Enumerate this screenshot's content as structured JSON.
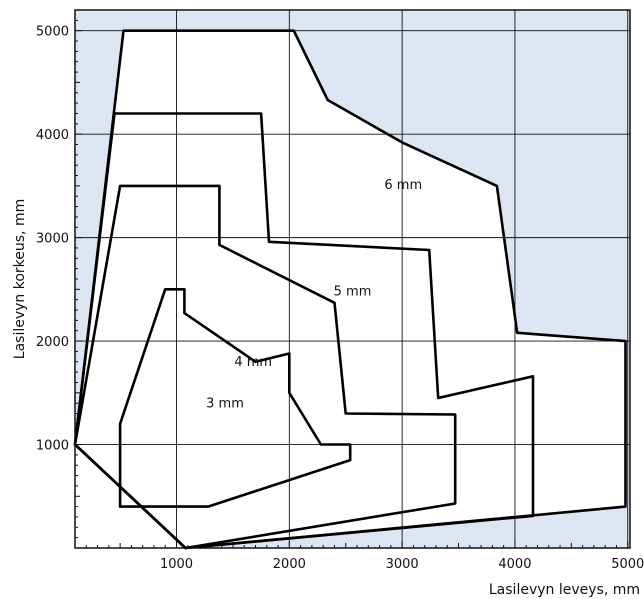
{
  "chart_data": {
    "type": "line",
    "title": "",
    "xlabel": "Lasilevyn leveys, mm",
    "ylabel": "Lasilevyn korkeus, mm",
    "xlim": [
      100,
      5020
    ],
    "ylim": [
      0,
      5200
    ],
    "x_ticks": [
      1000,
      2000,
      3000,
      4000,
      5000
    ],
    "y_ticks": [
      1000,
      2000,
      3000,
      4000,
      5000
    ],
    "grid": true,
    "legend": "none",
    "colors": {
      "shaded_region": "#dde4f2",
      "grid": "#111111",
      "curve": "#000000",
      "background": "#ffffff"
    },
    "series": [
      {
        "name": "3 mm",
        "points": [
          [
            500,
            400
          ],
          [
            1280,
            400
          ],
          [
            2540,
            850
          ],
          [
            2540,
            1000
          ],
          [
            2280,
            1000
          ],
          [
            2000,
            1500
          ],
          [
            2000,
            1880
          ],
          [
            1700,
            1800
          ],
          [
            1070,
            2270
          ],
          [
            1070,
            2500
          ],
          [
            900,
            2500
          ],
          [
            500,
            1200
          ],
          [
            500,
            400
          ]
        ]
      },
      {
        "name": "4 mm",
        "points": [
          [
            1080,
            0
          ],
          [
            3470,
            430
          ],
          [
            3470,
            1290
          ],
          [
            2500,
            1300
          ],
          [
            2400,
            2370
          ],
          [
            1380,
            2930
          ],
          [
            1380,
            3500
          ],
          [
            500,
            3500
          ],
          [
            100,
            1000
          ],
          [
            1080,
            0
          ]
        ]
      },
      {
        "name": "5 mm",
        "points": [
          [
            1080,
            0
          ],
          [
            4160,
            310
          ],
          [
            4160,
            1660
          ],
          [
            3320,
            1450
          ],
          [
            3240,
            2880
          ],
          [
            1820,
            2960
          ],
          [
            1750,
            4200
          ],
          [
            450,
            4200
          ],
          [
            100,
            1000
          ],
          [
            1080,
            0
          ]
        ]
      },
      {
        "name": "6 mm",
        "points": [
          [
            1080,
            0
          ],
          [
            4980,
            400
          ],
          [
            4980,
            2000
          ],
          [
            4020,
            2080
          ],
          [
            3840,
            3500
          ],
          [
            3000,
            3920
          ],
          [
            2340,
            4330
          ],
          [
            2040,
            5000
          ],
          [
            530,
            5000
          ],
          [
            100,
            1000
          ],
          [
            1080,
            0
          ]
        ]
      }
    ],
    "shaded_region": {
      "boundary": [
        [
          100,
          0
        ],
        [
          100,
          1000
        ],
        [
          530,
          5000
        ],
        [
          2040,
          5000
        ],
        [
          2340,
          4330
        ],
        [
          3000,
          3920
        ],
        [
          3840,
          3500
        ],
        [
          4020,
          2080
        ],
        [
          4980,
          2000
        ],
        [
          4980,
          400
        ],
        [
          1080,
          0
        ]
      ]
    },
    "annotations": [
      {
        "text": "3 mm",
        "x": 1430,
        "y": 1360
      },
      {
        "text": "4 mm",
        "x": 1680,
        "y": 1760
      },
      {
        "text": "5 mm",
        "x": 2560,
        "y": 2440
      },
      {
        "text": "6 mm",
        "x": 3010,
        "y": 3470
      }
    ]
  }
}
